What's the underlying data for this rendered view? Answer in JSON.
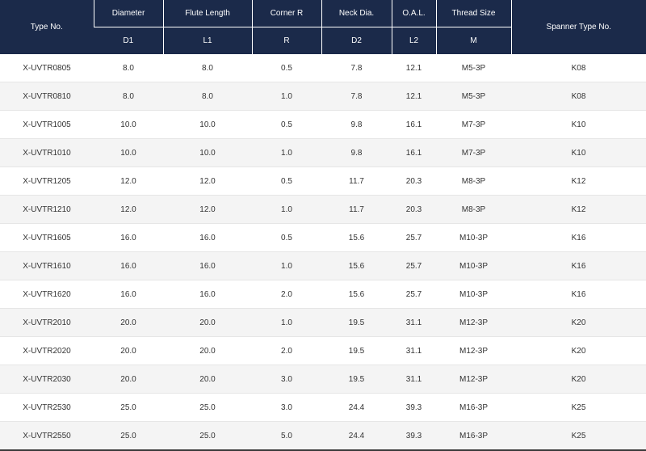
{
  "headers": {
    "type_no": "Type No.",
    "diameter": "Diameter",
    "flute_length": "Flute Length",
    "corner_r": "Corner R",
    "neck_dia": "Neck Dia.",
    "oal": "O.A.L.",
    "thread_size": "Thread Size",
    "spanner_type": "Spanner Type No.",
    "d1": "D1",
    "l1": "L1",
    "r": "R",
    "d2": "D2",
    "l2": "L2",
    "m": "M"
  },
  "rows": [
    [
      "X-UVTR0805",
      "8.0",
      "8.0",
      "0.5",
      "7.8",
      "12.1",
      "M5-3P",
      "K08"
    ],
    [
      "X-UVTR0810",
      "8.0",
      "8.0",
      "1.0",
      "7.8",
      "12.1",
      "M5-3P",
      "K08"
    ],
    [
      "X-UVTR1005",
      "10.0",
      "10.0",
      "0.5",
      "9.8",
      "16.1",
      "M7-3P",
      "K10"
    ],
    [
      "X-UVTR1010",
      "10.0",
      "10.0",
      "1.0",
      "9.8",
      "16.1",
      "M7-3P",
      "K10"
    ],
    [
      "X-UVTR1205",
      "12.0",
      "12.0",
      "0.5",
      "11.7",
      "20.3",
      "M8-3P",
      "K12"
    ],
    [
      "X-UVTR1210",
      "12.0",
      "12.0",
      "1.0",
      "11.7",
      "20.3",
      "M8-3P",
      "K12"
    ],
    [
      "X-UVTR1605",
      "16.0",
      "16.0",
      "0.5",
      "15.6",
      "25.7",
      "M10-3P",
      "K16"
    ],
    [
      "X-UVTR1610",
      "16.0",
      "16.0",
      "1.0",
      "15.6",
      "25.7",
      "M10-3P",
      "K16"
    ],
    [
      "X-UVTR1620",
      "16.0",
      "16.0",
      "2.0",
      "15.6",
      "25.7",
      "M10-3P",
      "K16"
    ],
    [
      "X-UVTR2010",
      "20.0",
      "20.0",
      "1.0",
      "19.5",
      "31.1",
      "M12-3P",
      "K20"
    ],
    [
      "X-UVTR2020",
      "20.0",
      "20.0",
      "2.0",
      "19.5",
      "31.1",
      "M12-3P",
      "K20"
    ],
    [
      "X-UVTR2030",
      "20.0",
      "20.0",
      "3.0",
      "19.5",
      "31.1",
      "M12-3P",
      "K20"
    ],
    [
      "X-UVTR2530",
      "25.0",
      "25.0",
      "3.0",
      "24.4",
      "39.3",
      "M16-3P",
      "K25"
    ],
    [
      "X-UVTR2550",
      "25.0",
      "25.0",
      "5.0",
      "24.4",
      "39.3",
      "M16-3P",
      "K25"
    ]
  ],
  "colors": {
    "header_bg": "#1b2a4a",
    "header_text": "#ffffff",
    "row_alt_bg": "#f4f4f4"
  }
}
